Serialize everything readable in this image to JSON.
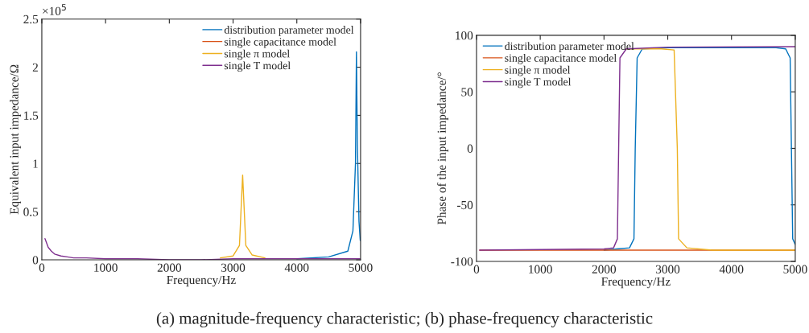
{
  "chart_data": [
    {
      "type": "line",
      "xlabel": "Frequency/Hz",
      "ylabel": "Equivalent input impedance/Ω",
      "annotations": [
        "×10$^{5}$"
      ],
      "xlim": [
        0,
        5000
      ],
      "xticks": [
        0,
        1000,
        2000,
        3000,
        4000,
        5000
      ],
      "ylim": [
        0,
        2.5
      ],
      "yticks": [
        0,
        0.5,
        1,
        1.5,
        2,
        2.5
      ],
      "grid": false,
      "legend": "top right",
      "series": [
        {
          "name": "distribution parameter model",
          "color": "#0072bd",
          "x": [
            4000,
            4500,
            4800,
            4880,
            4920,
            4935,
            4950,
            4975,
            4995
          ],
          "values": [
            0.01,
            0.03,
            0.09,
            0.3,
            1.0,
            2.16,
            1.2,
            0.4,
            0.2
          ]
        },
        {
          "name": "single capacitance model",
          "color": "#d95319"
        },
        {
          "name": "single π model",
          "color": "#edb120",
          "x": [
            2800,
            3000,
            3100,
            3150,
            3200,
            3300,
            3500
          ],
          "values": [
            0.02,
            0.04,
            0.15,
            0.88,
            0.15,
            0.05,
            0.02
          ]
        },
        {
          "name": "single T model",
          "color": "#7e2f8e",
          "x": [
            50,
            100,
            150,
            200,
            300,
            400,
            500,
            700,
            1000,
            1500,
            2000,
            2200,
            2230,
            2500,
            3000,
            4000,
            5000
          ],
          "values": [
            0.22,
            0.13,
            0.09,
            0.06,
            0.04,
            0.03,
            0.02,
            0.02,
            0.01,
            0.01,
            0.0,
            0.0,
            0.0,
            0.0,
            0.01,
            0.01,
            0.01
          ]
        }
      ]
    },
    {
      "type": "line",
      "xlabel": "Frequency/Hz",
      "ylabel": "Phase of the input impedance/°",
      "annotations": [
        "(a) magnitude-frequency characteristic; (b) phase-frequency characteristic"
      ],
      "xlim": [
        0,
        5000
      ],
      "xticks": [
        0,
        1000,
        2000,
        3000,
        4000,
        5000
      ],
      "ylim": [
        -100,
        100
      ],
      "yticks": [
        -100,
        -50,
        0,
        50,
        100
      ],
      "grid": false,
      "legend": "top left",
      "series": [
        {
          "name": "distribution parameter model",
          "color": "#0072bd",
          "x": [
            2000,
            2200,
            2400,
            2470,
            2490,
            2520,
            2600,
            3000,
            4700,
            4850,
            4920,
            4940,
            4960,
            5000
          ],
          "values": [
            -90,
            -89,
            -88,
            -80,
            0,
            80,
            88,
            89,
            89,
            88,
            80,
            0,
            -80,
            -85
          ]
        },
        {
          "name": "single capacitance model",
          "color": "#d95319",
          "x": [
            50,
            5000
          ],
          "values": [
            -90,
            -90
          ]
        },
        {
          "name": "single π model",
          "color": "#edb120",
          "x": [
            2350,
            2900,
            3100,
            3150,
            3170,
            3300,
            3700,
            5000
          ],
          "values": [
            88,
            88,
            87,
            0,
            -80,
            -88,
            -90,
            -90
          ]
        },
        {
          "name": "single T model",
          "color": "#7e2f8e",
          "x": [
            50,
            2000,
            2150,
            2210,
            2230,
            2250,
            2350,
            3000,
            5000
          ],
          "values": [
            -90,
            -89,
            -88,
            -80,
            0,
            80,
            88,
            89.5,
            90
          ]
        }
      ]
    }
  ]
}
